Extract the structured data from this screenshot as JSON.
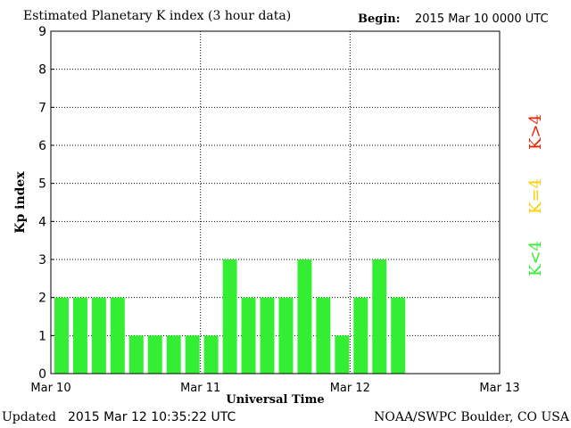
{
  "header": {
    "title": "Estimated Planetary K index (3 hour data)",
    "begin_label": "Begin:",
    "begin_value": "2015 Mar 10 0000 UTC"
  },
  "footer": {
    "updated_label": "Updated",
    "updated_value": "2015 Mar 12 10:35:22 UTC",
    "credit": "NOAA/SWPC Boulder, CO USA"
  },
  "legend": {
    "items": [
      {
        "label": "K<4",
        "color": "#33ee33"
      },
      {
        "label": "K=4",
        "color": "#ffcc00"
      },
      {
        "label": "K>4",
        "color": "#ee2200"
      }
    ]
  },
  "chart_data": {
    "type": "bar",
    "title": "Estimated Planetary K index (3 hour data)",
    "xlabel": "Universal Time",
    "ylabel": "Kp index",
    "ylim": [
      0,
      9
    ],
    "yticks": [
      "0",
      "1",
      "2",
      "3",
      "4",
      "5",
      "6",
      "7",
      "8",
      "9"
    ],
    "xticks": [
      "Mar 10",
      "Mar 11",
      "Mar 12",
      "Mar 13"
    ],
    "bar_color": "#33ee33",
    "grid": true,
    "values": [
      2,
      2,
      2,
      2,
      1,
      1,
      1,
      1,
      1,
      3,
      2,
      2,
      2,
      3,
      2,
      1,
      2,
      3,
      2
    ]
  }
}
